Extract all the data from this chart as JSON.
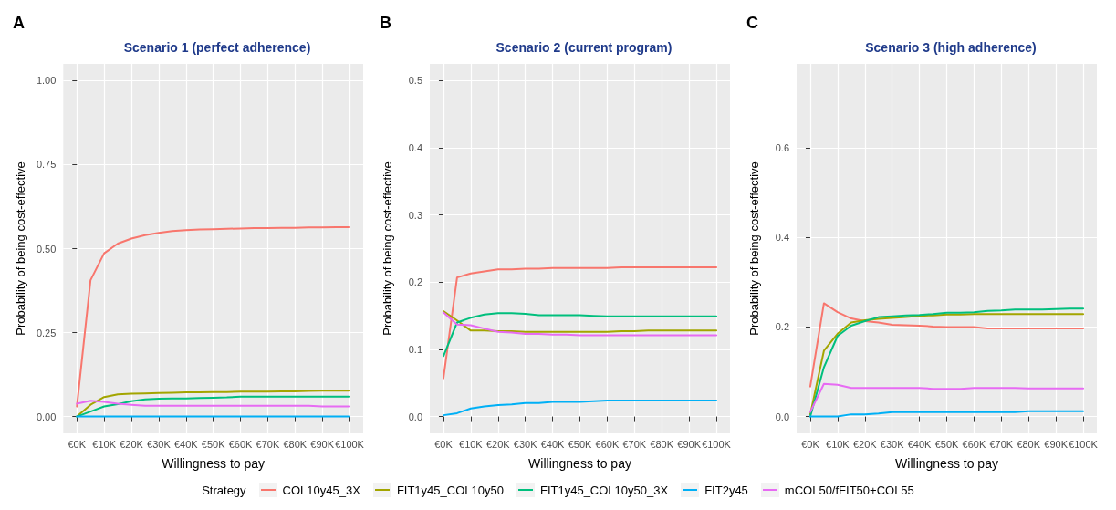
{
  "chart_data": [
    {
      "type": "line",
      "title": "Scenario 1 (perfect adherence)",
      "xlabel": "Willingness to pay",
      "ylabel": "Probability of being cost-effective",
      "annotations": [
        "A"
      ],
      "x": [
        0,
        5,
        10,
        15,
        20,
        25,
        30,
        35,
        40,
        45,
        50,
        55,
        60,
        65,
        70,
        75,
        80,
        85,
        90,
        95,
        100
      ],
      "xlim": [
        -5,
        105
      ],
      "xticks": [
        {
          "value": 0,
          "label": "€0K"
        },
        {
          "value": 10,
          "label": "€10K"
        },
        {
          "value": 20,
          "label": "€20K"
        },
        {
          "value": 30,
          "label": "€30K"
        },
        {
          "value": 40,
          "label": "€40K"
        },
        {
          "value": 50,
          "label": "€50K"
        },
        {
          "value": 60,
          "label": "€60K"
        },
        {
          "value": 70,
          "label": "€70K"
        },
        {
          "value": 80,
          "label": "€80K"
        },
        {
          "value": 90,
          "label": "€90K"
        },
        {
          "value": 100,
          "label": "€100K"
        }
      ],
      "ylim": [
        -0.05,
        1.05
      ],
      "yticks": [
        {
          "value": 0,
          "label": "0.00"
        },
        {
          "value": 0.25,
          "label": "0.25"
        },
        {
          "value": 0.5,
          "label": "0.50"
        },
        {
          "value": 0.75,
          "label": "0.75"
        },
        {
          "value": 1,
          "label": "1.00"
        }
      ],
      "grid": true,
      "legend": "bottom",
      "line_style": "solid",
      "marker": "none",
      "series": [
        {
          "name": "COL10y45_3X",
          "color": "#f8766d",
          "values": [
            0.03,
            0.406,
            0.486,
            0.515,
            0.53,
            0.54,
            0.547,
            0.552,
            0.555,
            0.557,
            0.558,
            0.559,
            0.56,
            0.561,
            0.561,
            0.562,
            0.562,
            0.563,
            0.563,
            0.564,
            0.564
          ]
        },
        {
          "name": "FIT1y45_COL10y50",
          "color": "#a3a500",
          "values": [
            0,
            0.035,
            0.058,
            0.066,
            0.068,
            0.069,
            0.07,
            0.071,
            0.072,
            0.072,
            0.073,
            0.073,
            0.074,
            0.074,
            0.074,
            0.075,
            0.075,
            0.076,
            0.077,
            0.077,
            0.077
          ]
        },
        {
          "name": "FIT1y45_COL10y50_3X",
          "color": "#00bf7d",
          "values": [
            0,
            0.015,
            0.03,
            0.037,
            0.046,
            0.051,
            0.053,
            0.054,
            0.054,
            0.055,
            0.056,
            0.057,
            0.059,
            0.059,
            0.059,
            0.059,
            0.059,
            0.059,
            0.059,
            0.059,
            0.059
          ]
        },
        {
          "name": "FIT2y45",
          "color": "#00b0f6",
          "values": [
            0,
            0,
            0,
            0,
            0,
            0,
            0,
            0,
            0,
            0,
            0,
            0,
            0,
            0,
            0,
            0,
            0,
            0,
            0,
            0,
            0
          ]
        },
        {
          "name": "mCOL50/fFIT50+COL55",
          "color": "#e76bf3",
          "values": [
            0.038,
            0.047,
            0.044,
            0.038,
            0.035,
            0.032,
            0.032,
            0.032,
            0.032,
            0.032,
            0.032,
            0.032,
            0.032,
            0.032,
            0.032,
            0.032,
            0.032,
            0.032,
            0.03,
            0.03,
            0.03
          ]
        }
      ]
    },
    {
      "type": "line",
      "title": "Scenario 2 (current program)",
      "xlabel": "Willingness to pay",
      "ylabel": "Probability of being cost-effective",
      "annotations": [
        "B"
      ],
      "x": [
        0,
        5,
        10,
        15,
        20,
        25,
        30,
        35,
        40,
        45,
        50,
        55,
        60,
        65,
        70,
        75,
        80,
        85,
        90,
        95,
        100
      ],
      "xlim": [
        -5,
        105
      ],
      "xticks": [
        {
          "value": 0,
          "label": "€0K"
        },
        {
          "value": 10,
          "label": "€10K"
        },
        {
          "value": 20,
          "label": "€20K"
        },
        {
          "value": 30,
          "label": "€30K"
        },
        {
          "value": 40,
          "label": "€40K"
        },
        {
          "value": 50,
          "label": "€50K"
        },
        {
          "value": 60,
          "label": "€60K"
        },
        {
          "value": 70,
          "label": "€70K"
        },
        {
          "value": 80,
          "label": "€80K"
        },
        {
          "value": 90,
          "label": "€90K"
        },
        {
          "value": 100,
          "label": "€100K"
        }
      ],
      "ylim": [
        -0.025,
        0.525
      ],
      "yticks": [
        {
          "value": 0,
          "label": "0.0"
        },
        {
          "value": 0.1,
          "label": "0.1"
        },
        {
          "value": 0.2,
          "label": "0.2"
        },
        {
          "value": 0.3,
          "label": "0.3"
        },
        {
          "value": 0.4,
          "label": "0.4"
        },
        {
          "value": 0.5,
          "label": "0.5"
        }
      ],
      "grid": true,
      "legend": "bottom",
      "line_style": "solid",
      "marker": "none",
      "series": [
        {
          "name": "COL10y45_3X",
          "color": "#f8766d",
          "values": [
            0.057,
            0.207,
            0.213,
            0.216,
            0.219,
            0.219,
            0.22,
            0.22,
            0.221,
            0.221,
            0.221,
            0.221,
            0.221,
            0.222,
            0.222,
            0.222,
            0.222,
            0.222,
            0.222,
            0.222,
            0.222
          ]
        },
        {
          "name": "FIT1y45_COL10y50",
          "color": "#a3a500",
          "values": [
            0.157,
            0.143,
            0.128,
            0.128,
            0.127,
            0.127,
            0.126,
            0.126,
            0.126,
            0.126,
            0.126,
            0.126,
            0.126,
            0.127,
            0.127,
            0.128,
            0.128,
            0.128,
            0.128,
            0.128,
            0.128
          ]
        },
        {
          "name": "FIT1y45_COL10y50_3X",
          "color": "#00bf7d",
          "values": [
            0.09,
            0.14,
            0.147,
            0.152,
            0.154,
            0.154,
            0.153,
            0.151,
            0.151,
            0.151,
            0.151,
            0.15,
            0.149,
            0.149,
            0.149,
            0.149,
            0.149,
            0.149,
            0.149,
            0.149,
            0.149
          ]
        },
        {
          "name": "FIT2y45",
          "color": "#00b0f6",
          "values": [
            0.002,
            0.005,
            0.012,
            0.015,
            0.017,
            0.018,
            0.02,
            0.02,
            0.022,
            0.022,
            0.022,
            0.023,
            0.024,
            0.024,
            0.024,
            0.024,
            0.024,
            0.024,
            0.024,
            0.024,
            0.024
          ]
        },
        {
          "name": "mCOL50/fFIT50+COL55",
          "color": "#e76bf3",
          "values": [
            0.155,
            0.137,
            0.136,
            0.131,
            0.126,
            0.125,
            0.123,
            0.123,
            0.122,
            0.122,
            0.121,
            0.121,
            0.121,
            0.121,
            0.121,
            0.121,
            0.121,
            0.121,
            0.121,
            0.121,
            0.121
          ]
        }
      ]
    },
    {
      "type": "line",
      "title": "Scenario 3 (high adherence)",
      "xlabel": "Willingness to pay",
      "ylabel": "Probability of being cost-effective",
      "annotations": [
        "C"
      ],
      "legend_title": "Strategy",
      "x": [
        0,
        5,
        10,
        15,
        20,
        25,
        30,
        35,
        40,
        45,
        50,
        55,
        60,
        65,
        70,
        75,
        80,
        85,
        90,
        95,
        100
      ],
      "xlim": [
        -5,
        105
      ],
      "xticks": [
        {
          "value": 0,
          "label": "€0K"
        },
        {
          "value": 10,
          "label": "€10K"
        },
        {
          "value": 20,
          "label": "€20K"
        },
        {
          "value": 30,
          "label": "€30K"
        },
        {
          "value": 40,
          "label": "€40K"
        },
        {
          "value": 50,
          "label": "€50K"
        },
        {
          "value": 60,
          "label": "€60K"
        },
        {
          "value": 70,
          "label": "€70K"
        },
        {
          "value": 80,
          "label": "€80K"
        },
        {
          "value": 90,
          "label": "€90K"
        },
        {
          "value": 100,
          "label": "€100K"
        }
      ],
      "ylim": [
        -0.0375,
        0.7875
      ],
      "yticks": [
        {
          "value": 0,
          "label": "0.0"
        },
        {
          "value": 0.2,
          "label": "0.2"
        },
        {
          "value": 0.4,
          "label": "0.4"
        },
        {
          "value": 0.6,
          "label": "0.6"
        }
      ],
      "grid": true,
      "legend": "bottom",
      "line_style": "solid",
      "marker": "none",
      "series": [
        {
          "name": "COL10y45_3X",
          "color": "#f8766d",
          "values": [
            0.067,
            0.253,
            0.233,
            0.219,
            0.213,
            0.21,
            0.205,
            0.204,
            0.203,
            0.201,
            0.2,
            0.2,
            0.2,
            0.197,
            0.197,
            0.197,
            0.197,
            0.197,
            0.197,
            0.197,
            0.197
          ]
        },
        {
          "name": "FIT1y45_COL10y50",
          "color": "#a3a500",
          "values": [
            0.005,
            0.147,
            0.185,
            0.21,
            0.215,
            0.218,
            0.22,
            0.222,
            0.225,
            0.226,
            0.228,
            0.228,
            0.229,
            0.229,
            0.229,
            0.229,
            0.229,
            0.229,
            0.229,
            0.229,
            0.229
          ]
        },
        {
          "name": "FIT1y45_COL10y50_3X",
          "color": "#00bf7d",
          "values": [
            0,
            0.11,
            0.18,
            0.203,
            0.213,
            0.222,
            0.224,
            0.226,
            0.227,
            0.229,
            0.232,
            0.232,
            0.233,
            0.236,
            0.237,
            0.239,
            0.239,
            0.239,
            0.24,
            0.241,
            0.241
          ]
        },
        {
          "name": "FIT2y45",
          "color": "#00b0f6",
          "values": [
            0,
            0,
            0,
            0.005,
            0.005,
            0.007,
            0.01,
            0.01,
            0.01,
            0.01,
            0.01,
            0.01,
            0.01,
            0.01,
            0.01,
            0.01,
            0.012,
            0.012,
            0.012,
            0.012,
            0.012
          ]
        },
        {
          "name": "mCOL50/fFIT50+COL55",
          "color": "#e76bf3",
          "values": [
            0.01,
            0.073,
            0.071,
            0.064,
            0.064,
            0.064,
            0.064,
            0.064,
            0.064,
            0.062,
            0.062,
            0.062,
            0.064,
            0.064,
            0.064,
            0.064,
            0.063,
            0.063,
            0.063,
            0.063,
            0.063
          ]
        }
      ]
    }
  ]
}
